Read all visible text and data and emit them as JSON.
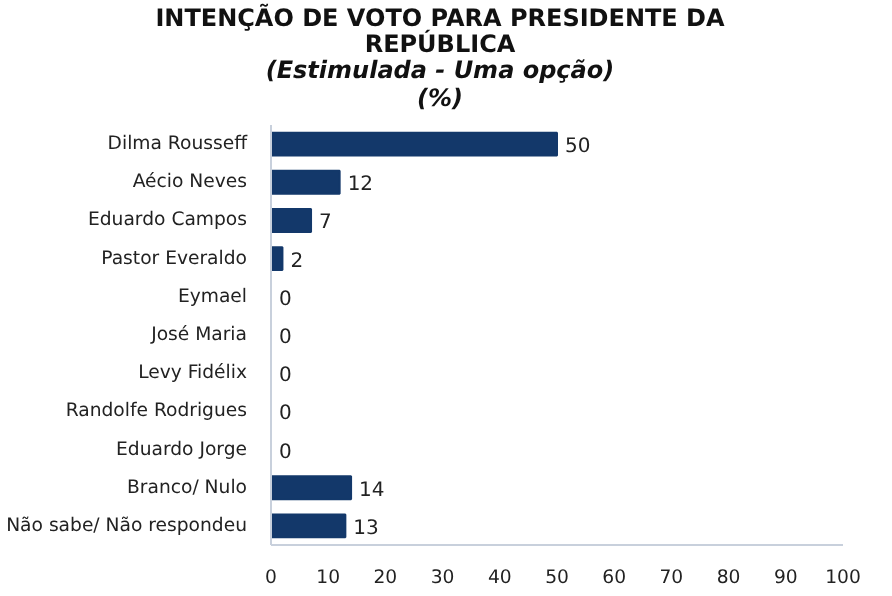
{
  "chart_data": {
    "type": "bar",
    "orientation": "horizontal",
    "title": "INTENÇÃO DE VOTO PARA PRESIDENTE DA REPÚBLICA",
    "subtitle": "(Estimulada - Uma opção) (%)",
    "categories": [
      "Dilma Rousseff",
      "Aécio Neves",
      "Eduardo Campos",
      "Pastor Everaldo",
      "Eymael",
      "José Maria",
      "Levy Fidélix",
      "Randolfe Rodrigues",
      "Eduardo Jorge",
      "Branco/ Nulo",
      "Não sabe/ Não respondeu"
    ],
    "values": [
      50,
      12,
      7,
      2,
      0,
      0,
      0,
      0,
      0,
      14,
      13
    ],
    "color": "#13386a",
    "xlim": [
      0,
      100
    ],
    "xticks": [
      0,
      10,
      20,
      30,
      40,
      50,
      60,
      70,
      80,
      90,
      100
    ],
    "data_labels": true,
    "grid": false
  }
}
